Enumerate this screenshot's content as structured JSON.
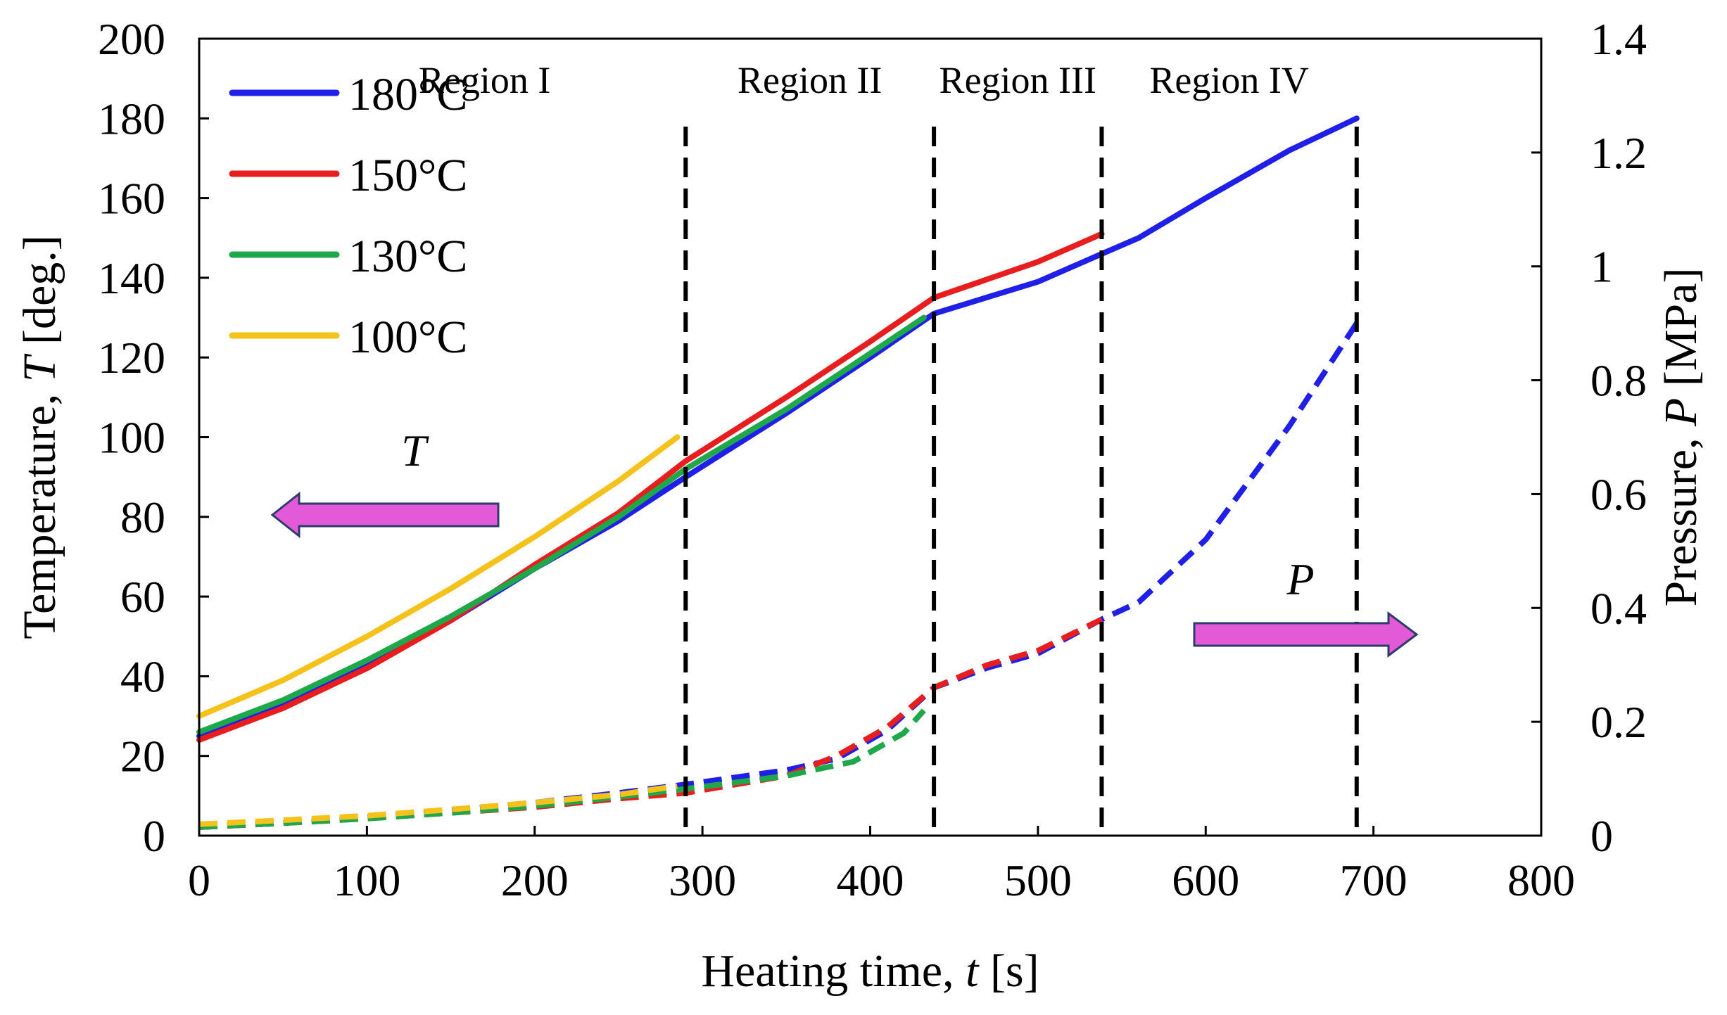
{
  "chart_data": {
    "type": "line",
    "xlabel": {
      "pre": "Heating time, ",
      "var": "t",
      "post": " [s]"
    },
    "ylabel_left": {
      "pre": "Temperature, ",
      "var": "T",
      "post": " [deg.]"
    },
    "ylabel_right": {
      "pre": "Pressure, ",
      "var": "P",
      "post": " [MPa]"
    },
    "xlim": [
      0,
      800
    ],
    "ylim_left": [
      0,
      200
    ],
    "ylim_right": [
      0,
      1.4
    ],
    "x_ticks": [
      "0",
      "100",
      "200",
      "300",
      "400",
      "500",
      "600",
      "700",
      "800"
    ],
    "y_left_ticks": [
      "0",
      "20",
      "40",
      "60",
      "80",
      "100",
      "120",
      "140",
      "160",
      "180",
      "200"
    ],
    "y_right_ticks": [
      "0",
      "0.2",
      "0.4",
      "0.6",
      "0.8",
      "1",
      "1.2",
      "1.4"
    ],
    "grid": false,
    "legend_position": "top-left",
    "legend": [
      "180°C",
      "150°C",
      "130°C",
      "100°C"
    ],
    "regions": [
      {
        "label": "Region I",
        "x_start": 0,
        "x_end": 290
      },
      {
        "label": "Region II",
        "x_start": 290,
        "x_end": 438
      },
      {
        "label": "Region III",
        "x_start": 438,
        "x_end": 538
      },
      {
        "label": "Region IV",
        "x_start": 538,
        "x_end": 690
      }
    ],
    "boundaries": [
      290,
      438,
      538,
      690
    ],
    "annotations": {
      "temperature_arrow": "T",
      "pressure_arrow": "P"
    },
    "colors": {
      "180°C": "#1f1fe8",
      "150°C": "#e81e1e",
      "130°C": "#1fa84a",
      "100°C": "#f5c21b",
      "arrow": "#e35ad8"
    },
    "series": [
      {
        "name": "180°C",
        "temperature": [
          [
            0,
            25
          ],
          [
            50,
            33
          ],
          [
            100,
            43
          ],
          [
            150,
            54
          ],
          [
            200,
            67
          ],
          [
            250,
            79
          ],
          [
            290,
            90
          ],
          [
            350,
            106
          ],
          [
            400,
            120
          ],
          [
            438,
            131
          ],
          [
            500,
            139
          ],
          [
            538,
            146
          ],
          [
            560,
            150
          ],
          [
            600,
            160
          ],
          [
            650,
            172
          ],
          [
            690,
            180
          ]
        ],
        "pressure": [
          [
            0,
            0.015
          ],
          [
            50,
            0.022
          ],
          [
            100,
            0.032
          ],
          [
            150,
            0.045
          ],
          [
            200,
            0.058
          ],
          [
            250,
            0.075
          ],
          [
            290,
            0.09
          ],
          [
            350,
            0.115
          ],
          [
            380,
            0.135
          ],
          [
            410,
            0.185
          ],
          [
            438,
            0.26
          ],
          [
            470,
            0.295
          ],
          [
            500,
            0.32
          ],
          [
            538,
            0.38
          ],
          [
            560,
            0.41
          ],
          [
            600,
            0.52
          ],
          [
            650,
            0.72
          ],
          [
            690,
            0.9
          ]
        ]
      },
      {
        "name": "150°C",
        "temperature": [
          [
            0,
            24
          ],
          [
            50,
            32
          ],
          [
            100,
            42
          ],
          [
            150,
            54
          ],
          [
            200,
            68
          ],
          [
            250,
            81
          ],
          [
            290,
            94
          ],
          [
            350,
            110
          ],
          [
            400,
            124
          ],
          [
            438,
            135
          ],
          [
            500,
            144
          ],
          [
            538,
            151
          ]
        ],
        "pressure": [
          [
            0,
            0.015
          ],
          [
            50,
            0.022
          ],
          [
            100,
            0.03
          ],
          [
            150,
            0.04
          ],
          [
            200,
            0.05
          ],
          [
            250,
            0.065
          ],
          [
            290,
            0.075
          ],
          [
            350,
            0.105
          ],
          [
            380,
            0.14
          ],
          [
            410,
            0.19
          ],
          [
            438,
            0.26
          ],
          [
            470,
            0.3
          ],
          [
            500,
            0.325
          ],
          [
            538,
            0.38
          ]
        ]
      },
      {
        "name": "130°C",
        "temperature": [
          [
            0,
            26
          ],
          [
            50,
            34
          ],
          [
            100,
            44
          ],
          [
            150,
            55
          ],
          [
            200,
            67
          ],
          [
            250,
            80
          ],
          [
            290,
            92
          ],
          [
            350,
            107
          ],
          [
            400,
            121
          ],
          [
            432,
            130
          ]
        ],
        "pressure": [
          [
            0,
            0.015
          ],
          [
            50,
            0.022
          ],
          [
            100,
            0.03
          ],
          [
            150,
            0.04
          ],
          [
            200,
            0.052
          ],
          [
            250,
            0.068
          ],
          [
            290,
            0.082
          ],
          [
            350,
            0.105
          ],
          [
            390,
            0.13
          ],
          [
            420,
            0.18
          ],
          [
            432,
            0.22
          ]
        ]
      },
      {
        "name": "100°C",
        "temperature": [
          [
            0,
            30
          ],
          [
            50,
            39
          ],
          [
            100,
            50
          ],
          [
            150,
            62
          ],
          [
            200,
            75
          ],
          [
            250,
            89
          ],
          [
            285,
            100
          ]
        ],
        "pressure": [
          [
            0,
            0.02
          ],
          [
            50,
            0.027
          ],
          [
            100,
            0.035
          ],
          [
            150,
            0.046
          ],
          [
            200,
            0.058
          ],
          [
            250,
            0.072
          ],
          [
            285,
            0.087
          ]
        ]
      }
    ]
  }
}
